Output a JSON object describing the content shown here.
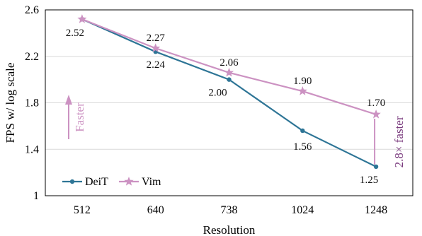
{
  "chart_data": {
    "type": "line",
    "xlabel": "Resolution",
    "ylabel": "FPS w/ log scale",
    "categories": [
      "512",
      "640",
      "738",
      "1024",
      "1248"
    ],
    "ylim": [
      1,
      2.6
    ],
    "yticks": [
      "1",
      "1.4",
      "1.8",
      "2.2",
      "2.6"
    ],
    "grid": true,
    "legend_position": "bottom-left",
    "series": [
      {
        "name": "DeiT",
        "marker": "circle",
        "color": "#2e7596",
        "values": [
          2.52,
          2.24,
          2.0,
          1.56,
          1.25
        ],
        "labels": [
          "",
          "2.24",
          "2.00",
          "1.56",
          "1.25"
        ]
      },
      {
        "name": "Vim",
        "marker": "star",
        "color": "#cc92c2",
        "values": [
          2.52,
          2.27,
          2.06,
          1.9,
          1.7
        ],
        "labels": [
          "2.52",
          "2.27",
          "2.06",
          "1.90",
          "1.70"
        ]
      }
    ],
    "annotations": {
      "faster": "Faster",
      "speedup": "2.8× faster"
    },
    "colors": {
      "faster_arrow": "#cc92c2",
      "speedup_text": "#7a3b7e",
      "grid": "#d9d9d9"
    }
  }
}
